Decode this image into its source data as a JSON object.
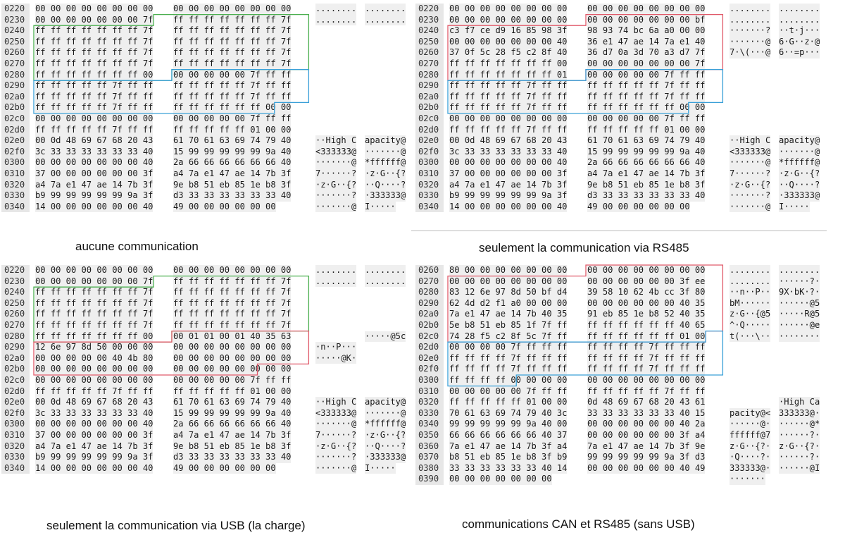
{
  "panels": [
    {
      "id": "tl",
      "caption": "aucune communication",
      "rows": [
        {
          "off": "0220",
          "h1": "00 00 00 00 00 00 00 00",
          "h2": "00 00 00 00 00 00 00 00",
          "a1": "........",
          "a2": "........"
        },
        {
          "off": "0230",
          "h1": "00 00 00 00 00 00 00 7f",
          "h2": "ff ff ff ff ff ff ff 7f",
          "a1": "........",
          "a2": "........"
        },
        {
          "off": "0240",
          "h1": "ff ff ff ff ff ff ff 7f",
          "h2": "ff ff ff ff ff ff ff 7f",
          "a1": "",
          "a2": ""
        },
        {
          "off": "0250",
          "h1": "ff ff ff ff ff ff ff 7f",
          "h2": "ff ff ff ff ff ff ff 7f",
          "a1": "",
          "a2": ""
        },
        {
          "off": "0260",
          "h1": "ff ff ff ff ff ff ff 7f",
          "h2": "ff ff ff ff ff ff ff 7f",
          "a1": "",
          "a2": ""
        },
        {
          "off": "0270",
          "h1": "ff ff ff ff ff ff ff 7f",
          "h2": "ff ff ff ff ff ff ff 7f",
          "a1": "",
          "a2": ""
        },
        {
          "off": "0280",
          "h1": "ff ff ff ff ff ff ff 00",
          "h2": "00 00 00 00 00 7f ff ff",
          "a1": "",
          "a2": ""
        },
        {
          "off": "0290",
          "h1": "ff ff ff ff ff 7f ff ff",
          "h2": "ff ff ff ff ff 7f ff ff",
          "a1": "",
          "a2": ""
        },
        {
          "off": "02a0",
          "h1": "ff ff ff ff ff 7f ff ff",
          "h2": "ff ff ff ff ff 7f ff ff",
          "a1": "",
          "a2": ""
        },
        {
          "off": "02b0",
          "h1": "ff ff ff ff ff 7f ff ff",
          "h2": "ff ff ff ff ff ff 00 00",
          "a1": "",
          "a2": ""
        },
        {
          "off": "02c0",
          "h1": "00 00 00 00 00 00 00 00",
          "h2": "00 00 00 00 00 7f ff ff",
          "a1": "",
          "a2": ""
        },
        {
          "off": "02d0",
          "h1": "ff ff ff ff ff 7f ff ff",
          "h2": "ff ff ff ff ff 01 00 00",
          "a1": "",
          "a2": ""
        },
        {
          "off": "02e0",
          "h1": "00 0d 48 69 67 68 20 43",
          "h2": "61 70 61 63 69 74 79 40",
          "a1": "··High C",
          "a2": "apacity@"
        },
        {
          "off": "02f0",
          "h1": "3c 33 33 33 33 33 33 40",
          "h2": "15 99 99 99 99 99 9a 40",
          "a1": "<333333@",
          "a2": "·······@"
        },
        {
          "off": "0300",
          "h1": "00 00 00 00 00 00 00 40",
          "h2": "2a 66 66 66 66 66 66 40",
          "a1": "·······@",
          "a2": "*ffffff@"
        },
        {
          "off": "0310",
          "h1": "37 00 00 00 00 00 00 3f",
          "h2": "a4 7a e1 47 ae 14 7b 3f",
          "a1": "7······?",
          "a2": "·z·G··{?"
        },
        {
          "off": "0320",
          "h1": "a4 7a e1 47 ae 14 7b 3f",
          "h2": "9e b8 51 eb 85 1e b8 3f",
          "a1": "·z·G··{?",
          "a2": "··Q····?"
        },
        {
          "off": "0330",
          "h1": "b9 99 99 99 99 99 9a 3f",
          "h2": "d3 33 33 33 33 33 33 40",
          "a1": "·······?",
          "a2": "·333333@"
        },
        {
          "off": "0340",
          "h1": "14 00 00 00 00 00 00 40",
          "h2": "49 00 00 00 00 00 00",
          "a1": "·······@",
          "a2": "I·····"
        }
      ]
    },
    {
      "id": "tr",
      "caption": "seulement la communication via RS485",
      "rows": [
        {
          "off": "0220",
          "h1": "00 00 00 00 00 00 00 00",
          "h2": "00 00 00 00 00 00 00 00",
          "a1": "........",
          "a2": "........"
        },
        {
          "off": "0230",
          "h1": "00 00 00 00 00 00 00 00",
          "h2": "00 00 00 00 00 00 00 bf",
          "a1": "........",
          "a2": "........"
        },
        {
          "off": "0240",
          "h1": "c3 f7 ce d9 16 85 98 3f",
          "h2": "98 93 74 bc 6a a0 00 00",
          "a1": "·······?",
          "a2": "··t·j···"
        },
        {
          "off": "0250",
          "h1": "00 00 00 00 00 00 00 40",
          "h2": "36 e1 47 ae 14 7a e1 40",
          "a1": "·······@",
          "a2": "6·G··z·@"
        },
        {
          "off": "0260",
          "h1": "37 0f 5c 28 f5 c2 8f 40",
          "h2": "36 d7 0a 3d 70 a3 d7 7f",
          "a1": "7·\\(···@",
          "a2": "6··=p···"
        },
        {
          "off": "0270",
          "h1": "ff ff ff ff ff ff ff 00",
          "h2": "00 00 00 00 00 00 00 7f",
          "a1": "",
          "a2": ""
        },
        {
          "off": "0280",
          "h1": "ff ff ff ff ff ff ff 01",
          "h2": "00 00 00 00 00 7f ff ff",
          "a1": "",
          "a2": ""
        },
        {
          "off": "0290",
          "h1": "ff ff ff ff ff 7f ff ff",
          "h2": "ff ff ff ff ff 7f ff ff",
          "a1": "",
          "a2": ""
        },
        {
          "off": "02a0",
          "h1": "ff ff ff ff ff 7f ff ff",
          "h2": "ff ff ff ff ff 7f ff ff",
          "a1": "",
          "a2": ""
        },
        {
          "off": "02b0",
          "h1": "ff ff ff ff ff 7f ff ff",
          "h2": "ff ff ff ff ff ff 00 00",
          "a1": "",
          "a2": ""
        },
        {
          "off": "02c0",
          "h1": "00 00 00 00 00 00 00 00",
          "h2": "00 00 00 00 00 7f ff ff",
          "a1": "",
          "a2": ""
        },
        {
          "off": "02d0",
          "h1": "ff ff ff ff ff 7f ff ff",
          "h2": "ff ff ff ff ff 01 00 00",
          "a1": "",
          "a2": ""
        },
        {
          "off": "02e0",
          "h1": "00 0d 48 69 67 68 20 43",
          "h2": "61 70 61 63 69 74 79 40",
          "a1": "··High C",
          "a2": "apacity@"
        },
        {
          "off": "02f0",
          "h1": "3c 33 33 33 33 33 33 40",
          "h2": "15 99 99 99 99 99 9a 40",
          "a1": "<333333@",
          "a2": "·······@"
        },
        {
          "off": "0300",
          "h1": "00 00 00 00 00 00 00 40",
          "h2": "2a 66 66 66 66 66 66 40",
          "a1": "·······@",
          "a2": "*ffffff@"
        },
        {
          "off": "0310",
          "h1": "37 00 00 00 00 00 00 3f",
          "h2": "a4 7a e1 47 ae 14 7b 3f",
          "a1": "7······?",
          "a2": "·z·G··{?"
        },
        {
          "off": "0320",
          "h1": "a4 7a e1 47 ae 14 7b 3f",
          "h2": "9e b8 51 eb 85 1e b8 3f",
          "a1": "·z·G··{?",
          "a2": "··Q····?"
        },
        {
          "off": "0330",
          "h1": "b9 99 99 99 99 99 9a 3f",
          "h2": "d3 33 33 33 33 33 33 40",
          "a1": "·······?",
          "a2": "·333333@"
        },
        {
          "off": "0340",
          "h1": "14 00 00 00 00 00 00 40",
          "h2": "49 00 00 00 00 00 00",
          "a1": "·······@",
          "a2": "I·····"
        }
      ]
    },
    {
      "id": "bl",
      "caption": "seulement la communication via USB (la charge)",
      "rows": [
        {
          "off": "0220",
          "h1": "00 00 00 00 00 00 00 00",
          "h2": "00 00 00 00 00 00 00 00",
          "a1": "........",
          "a2": "........"
        },
        {
          "off": "0230",
          "h1": "00 00 00 00 00 00 00 7f",
          "h2": "ff ff ff ff ff ff ff 7f",
          "a1": "........",
          "a2": "........"
        },
        {
          "off": "0240",
          "h1": "ff ff ff ff ff ff ff 7f",
          "h2": "ff ff ff ff ff ff ff 7f",
          "a1": "",
          "a2": ""
        },
        {
          "off": "0250",
          "h1": "ff ff ff ff ff ff ff 7f",
          "h2": "ff ff ff ff ff ff ff 7f",
          "a1": "",
          "a2": ""
        },
        {
          "off": "0260",
          "h1": "ff ff ff ff ff ff ff 7f",
          "h2": "ff ff ff ff ff ff ff 7f",
          "a1": "",
          "a2": ""
        },
        {
          "off": "0270",
          "h1": "ff ff ff ff ff ff ff 7f",
          "h2": "ff ff ff ff ff ff ff 7f",
          "a1": "",
          "a2": ""
        },
        {
          "off": "0280",
          "h1": "ff ff ff ff ff ff ff 00",
          "h2": "00 01 01 00 01 40 35 63",
          "a1": "",
          "a2": "·····@5c"
        },
        {
          "off": "0290",
          "h1": "12 6e 97 8d 50 00 00 00",
          "h2": "00 00 00 00 00 00 00 00",
          "a1": "·n··P···",
          "a2": ""
        },
        {
          "off": "02a0",
          "h1": "00 00 00 00 00 40 4b 80",
          "h2": "00 00 00 00 00 00 00 00",
          "a1": "·····@K·",
          "a2": ""
        },
        {
          "off": "02b0",
          "h1": "00 00 00 00 00 00 00 00",
          "h2": "00 00 00 00 00 00 00 00",
          "a1": "",
          "a2": ""
        },
        {
          "off": "02c0",
          "h1": "00 00 00 00 00 00 00 00",
          "h2": "00 00 00 00 00 7f ff ff",
          "a1": "",
          "a2": ""
        },
        {
          "off": "02d0",
          "h1": "ff ff ff ff ff 7f ff ff",
          "h2": "ff ff ff ff ff 01 00 00",
          "a1": "",
          "a2": ""
        },
        {
          "off": "02e0",
          "h1": "00 0d 48 69 67 68 20 43",
          "h2": "61 70 61 63 69 74 79 40",
          "a1": "··High C",
          "a2": "apacity@"
        },
        {
          "off": "02f0",
          "h1": "3c 33 33 33 33 33 33 40",
          "h2": "15 99 99 99 99 99 9a 40",
          "a1": "<333333@",
          "a2": "·······@"
        },
        {
          "off": "0300",
          "h1": "00 00 00 00 00 00 00 40",
          "h2": "2a 66 66 66 66 66 66 40",
          "a1": "·······@",
          "a2": "*ffffff@"
        },
        {
          "off": "0310",
          "h1": "37 00 00 00 00 00 00 3f",
          "h2": "a4 7a e1 47 ae 14 7b 3f",
          "a1": "7······?",
          "a2": "·z·G··{?"
        },
        {
          "off": "0320",
          "h1": "a4 7a e1 47 ae 14 7b 3f",
          "h2": "9e b8 51 eb 85 1e b8 3f",
          "a1": "·z·G··{?",
          "a2": "··Q····?"
        },
        {
          "off": "0330",
          "h1": "b9 99 99 99 99 99 9a 3f",
          "h2": "d3 33 33 33 33 33 33 40",
          "a1": "·······?",
          "a2": "·333333@"
        },
        {
          "off": "0340",
          "h1": "14 00 00 00 00 00 00 40",
          "h2": "49 00 00 00 00 00 00",
          "a1": "·······@",
          "a2": "I·····"
        }
      ]
    },
    {
      "id": "br",
      "caption": "communications CAN et RS485 (sans USB)",
      "rows": [
        {
          "off": "0260",
          "h1": "80 00 00 00 00 00 00 00",
          "h2": "00 00 00 00 00 00 00 00",
          "a1": "........",
          "a2": "........"
        },
        {
          "off": "0270",
          "h1": "00 00 00 00 00 00 00 00",
          "h2": "00 00 00 00 00 00 3f ee",
          "a1": "........",
          "a2": "······?·"
        },
        {
          "off": "0280",
          "h1": "83 12 6e 97 8d 50 bf d4",
          "h2": "39 58 10 62 4b cc 3f 80",
          "a1": "··n··P··",
          "a2": "9X·bK·?·"
        },
        {
          "off": "0290",
          "h1": "62 4d d2 f1 a0 00 00 00",
          "h2": "00 00 00 00 00 00 40 35",
          "a1": "bM······",
          "a2": "······@5"
        },
        {
          "off": "02a0",
          "h1": "7a e1 47 ae 14 7b 40 35",
          "h2": "91 eb 85 1e b8 52 40 35",
          "a1": "z·G··{@5",
          "a2": "·····R@5"
        },
        {
          "off": "02b0",
          "h1": "5e b8 51 eb 85 1f 7f ff",
          "h2": "ff ff ff ff ff ff 40 65",
          "a1": "^·Q·····",
          "a2": "······@e"
        },
        {
          "off": "02c0",
          "h1": "74 28 f5 c2 8f 5c 7f ff",
          "h2": "ff ff ff ff ff ff 01 00",
          "a1": "t(···\\··",
          "a2": "········"
        },
        {
          "off": "02d0",
          "h1": "00 00 00 00 7f ff ff ff",
          "h2": "ff ff ff ff 7f ff ff ff",
          "a1": "",
          "a2": ""
        },
        {
          "off": "02e0",
          "h1": "ff ff ff ff 7f ff ff ff",
          "h2": "ff ff ff ff 7f ff ff ff",
          "a1": "",
          "a2": ""
        },
        {
          "off": "02f0",
          "h1": "ff ff ff ff 7f ff ff ff",
          "h2": "ff ff ff ff 7f ff ff ff",
          "a1": "",
          "a2": ""
        },
        {
          "off": "0300",
          "h1": "ff ff ff ff 00 00 00 00",
          "h2": "00 00 00 00 00 00 00 00",
          "a1": "",
          "a2": ""
        },
        {
          "off": "0310",
          "h1": "00 00 00 00 00 7f ff ff",
          "h2": "ff ff ff ff ff 7f ff ff",
          "a1": "",
          "a2": ""
        },
        {
          "off": "0320",
          "h1": "ff ff ff ff ff 01 00 00",
          "h2": "0d 48 69 67 68 20 43 61",
          "a1": "",
          "a2": "·High Ca"
        },
        {
          "off": "0330",
          "h1": "70 61 63 69 74 79 40 3c",
          "h2": "33 33 33 33 33 33 40 15",
          "a1": "pacity@<",
          "a2": "333333@·"
        },
        {
          "off": "0340",
          "h1": "99 99 99 99 99 9a 40 00",
          "h2": "00 00 00 00 00 00 40 2a",
          "a1": "······@·",
          "a2": "······@*"
        },
        {
          "off": "0350",
          "h1": "66 66 66 66 66 66 40 37",
          "h2": "00 00 00 00 00 00 3f a4",
          "a1": "ffffff@7",
          "a2": "······?·"
        },
        {
          "off": "0360",
          "h1": "7a e1 47 ae 14 7b 3f a4",
          "h2": "7a e1 47 ae 14 7b 3f 9e",
          "a1": "z·G··{?·",
          "a2": "z·G··{?·"
        },
        {
          "off": "0370",
          "h1": "b8 51 eb 85 1e b8 3f b9",
          "h2": "99 99 99 99 99 9a 3f d3",
          "a1": "·Q····?·",
          "a2": "······?·"
        },
        {
          "off": "0380",
          "h1": "33 33 33 33 33 33 40 14",
          "h2": "00 00 00 00 00 00 40 49",
          "a1": "333333@·",
          "a2": "······@I"
        },
        {
          "off": "0390",
          "h1": "00 00 00 00 00 00 00",
          "h2": "",
          "a1": "·······",
          "a2": ""
        }
      ]
    }
  ],
  "highlight_colors": {
    "green": "#4caf50",
    "blue": "#3aa0d8",
    "red": "#e05a6a"
  }
}
